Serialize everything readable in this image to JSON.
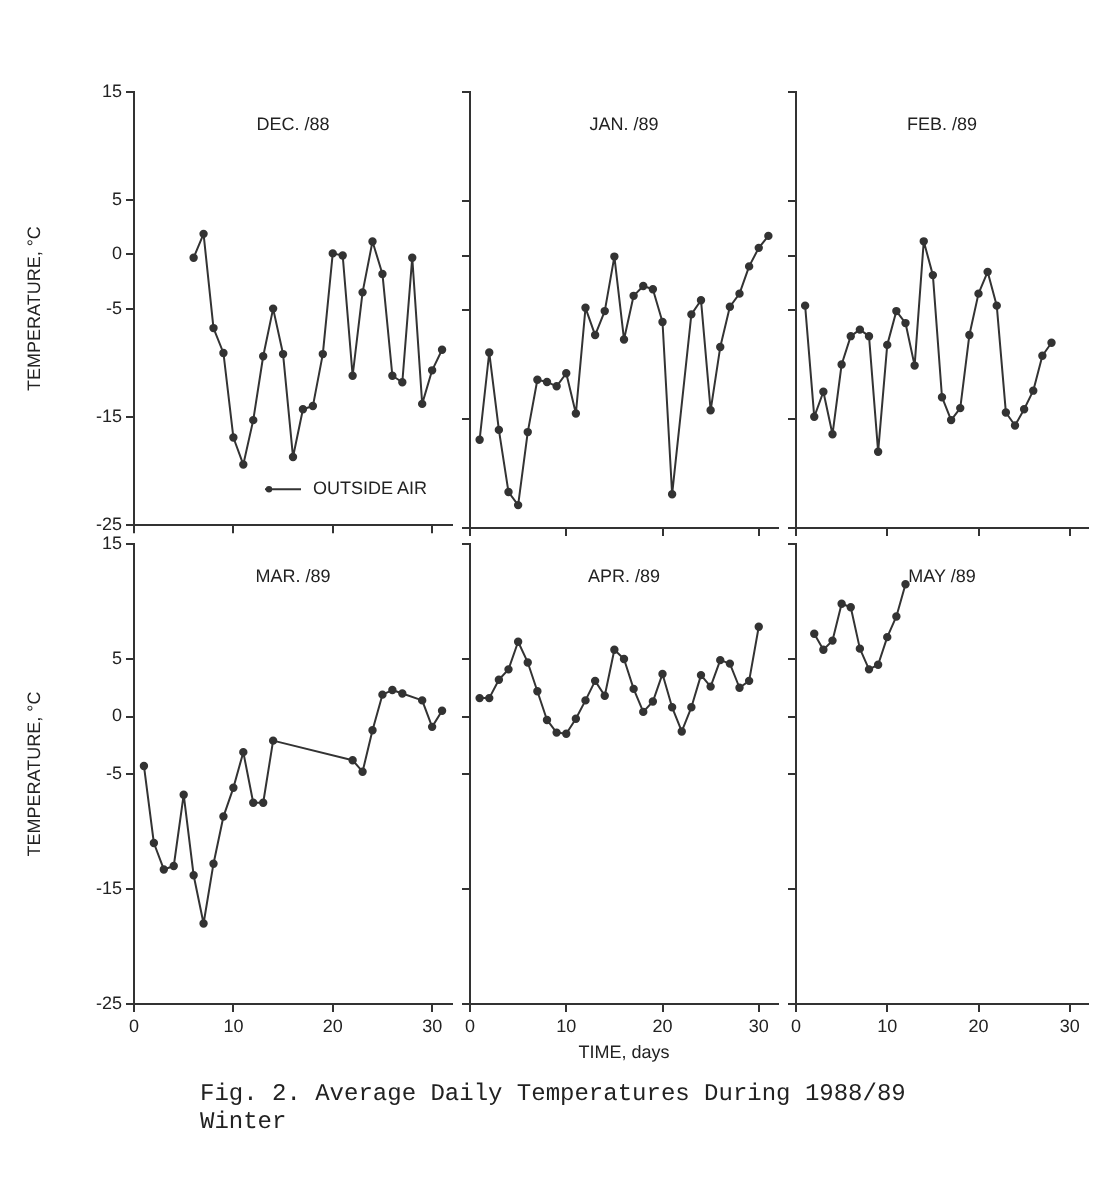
{
  "chart_data": [
    {
      "type": "line",
      "title": "DEC. /88",
      "ylabel": "TEMPERATURE, °C",
      "xlim": [
        0,
        32
      ],
      "xticks": [
        0,
        10,
        20,
        30
      ],
      "ylim": [
        -25,
        15
      ],
      "yticks": [
        -25,
        -15,
        -5,
        0,
        5,
        15
      ],
      "tick_labels": "y",
      "grid": false,
      "legend": "bottom right",
      "marker": "circle",
      "line_style": "solid",
      "series": [
        {
          "name": "OUTSIDE AIR",
          "color": "#333333",
          "x": [
            6,
            7,
            8,
            9,
            10,
            11,
            12,
            13,
            14,
            15,
            16,
            17,
            18,
            19,
            20,
            21,
            22,
            23,
            24,
            25,
            26,
            27,
            28,
            29,
            30,
            31
          ],
          "values": [
            -0.3,
            1.9,
            -6.8,
            -9.1,
            -16.9,
            -19.4,
            -15.3,
            -9.4,
            -5,
            -9.2,
            -18.7,
            -14.3,
            -14,
            -9.2,
            0.1,
            -0.1,
            -11.2,
            -3.5,
            1.2,
            -1.8,
            -11.2,
            -11.8,
            -0.3,
            -13.8,
            -10.7,
            -8.8
          ]
        }
      ]
    },
    {
      "type": "line",
      "title": "JAN. /89",
      "xlim": [
        0,
        32
      ],
      "xticks": [
        0,
        10,
        20,
        30
      ],
      "ylim": [
        -25,
        15
      ],
      "yticks": [
        -25,
        -15,
        -5,
        0,
        5,
        15
      ],
      "tick_labels": false,
      "grid": false,
      "marker": "circle",
      "line_style": "solid",
      "series": [
        {
          "color": "#333333",
          "x": [
            1,
            2,
            3,
            4,
            5,
            6,
            7,
            8,
            9,
            10,
            11,
            12,
            13,
            14,
            15,
            16,
            17,
            18,
            19,
            20,
            21,
            23,
            24,
            25,
            26,
            27,
            28,
            29,
            30,
            31
          ],
          "values": [
            -16.9,
            -8.9,
            -16,
            -21.7,
            -22.9,
            -16.2,
            -11.4,
            -11.6,
            -12,
            -10.8,
            -14.5,
            -4.8,
            -7.3,
            -5.1,
            -0.1,
            -7.7,
            -3.7,
            -2.8,
            -3.1,
            -6.1,
            -21.9,
            -5.4,
            -4.1,
            -14.2,
            -8.4,
            -4.7,
            -3.5,
            -1,
            0.7,
            1.8
          ]
        }
      ]
    },
    {
      "type": "line",
      "title": "FEB. /89",
      "xlim": [
        0,
        32
      ],
      "xticks": [
        0,
        10,
        20,
        30
      ],
      "ylim": [
        -25,
        15
      ],
      "yticks": [
        -25,
        -15,
        -5,
        0,
        5,
        15
      ],
      "tick_labels": false,
      "grid": false,
      "marker": "circle",
      "line_style": "solid",
      "series": [
        {
          "color": "#333333",
          "x": [
            1,
            2,
            3,
            4,
            5,
            6,
            7,
            8,
            9,
            10,
            11,
            12,
            13,
            14,
            15,
            16,
            17,
            18,
            19,
            20,
            21,
            22,
            23,
            24,
            25,
            26,
            27,
            28
          ],
          "values": [
            -4.6,
            -14.8,
            -12.5,
            -16.4,
            -10,
            -7.4,
            -6.8,
            -7.4,
            -18,
            -8.2,
            -5.1,
            -6.2,
            -10.1,
            1.3,
            -1.8,
            -13,
            -15.1,
            -14,
            -7.3,
            -3.5,
            -1.5,
            -4.6,
            -14.4,
            -15.6,
            -14.1,
            -12.4,
            -9.2,
            -8
          ]
        }
      ]
    },
    {
      "type": "line",
      "title": "MAR. /89",
      "ylabel": "TEMPERATURE, °C",
      "xlim": [
        0,
        32
      ],
      "xticks": [
        0,
        10,
        20,
        30
      ],
      "ylim": [
        -25,
        15
      ],
      "yticks": [
        -25,
        -15,
        -5,
        0,
        5,
        15
      ],
      "grid": false,
      "marker": "circle",
      "line_style": "solid",
      "series": [
        {
          "color": "#333333",
          "x": [
            1,
            2,
            3,
            4,
            5,
            6,
            7,
            8,
            9,
            10,
            11,
            12,
            13,
            14,
            22,
            23,
            24,
            25,
            26,
            27,
            29,
            30,
            31
          ],
          "values": [
            -4.3,
            -11,
            -13.3,
            -13,
            -6.8,
            -13.8,
            -18,
            -12.8,
            -8.7,
            -6.2,
            -3.1,
            -7.5,
            -7.5,
            -2.1,
            -3.8,
            -4.8,
            -1.2,
            1.9,
            2.3,
            2,
            1.4,
            -0.9,
            0.5
          ]
        }
      ]
    },
    {
      "type": "line",
      "title": "APR. /89",
      "xlabel": "TIME, days",
      "annotations": [
        "Fig. 2. Average Daily Temperatures During 1988/89 Winter"
      ],
      "xlim": [
        0,
        32
      ],
      "xticks": [
        0,
        10,
        20,
        30
      ],
      "ylim": [
        -25,
        15
      ],
      "yticks": [
        -25,
        -15,
        -5,
        0,
        5,
        15
      ],
      "tick_labels": "x",
      "grid": false,
      "marker": "circle",
      "line_style": "solid",
      "series": [
        {
          "color": "#333333",
          "x": [
            1,
            2,
            3,
            4,
            5,
            6,
            7,
            8,
            9,
            10,
            11,
            12,
            13,
            14,
            15,
            16,
            17,
            18,
            19,
            20,
            21,
            22,
            23,
            24,
            25,
            26,
            27,
            28,
            29,
            30
          ],
          "values": [
            1.6,
            1.6,
            3.2,
            4.1,
            6.5,
            4.7,
            2.2,
            -0.3,
            -1.4,
            -1.5,
            -0.2,
            1.4,
            3.1,
            1.8,
            5.8,
            5,
            2.4,
            0.4,
            1.3,
            3.7,
            0.8,
            -1.3,
            0.8,
            3.6,
            2.6,
            4.9,
            4.6,
            2.5,
            3.1,
            7.8
          ]
        }
      ]
    },
    {
      "type": "line",
      "title": "MAY /89",
      "xlim": [
        0,
        32
      ],
      "xticks": [
        0,
        10,
        20,
        30
      ],
      "ylim": [
        -25,
        15
      ],
      "yticks": [
        -25,
        -15,
        -5,
        0,
        5,
        15
      ],
      "tick_labels": "x",
      "grid": false,
      "marker": "circle",
      "line_style": "solid",
      "series": [
        {
          "color": "#333333",
          "x": [
            2,
            3,
            4,
            5,
            6,
            7,
            8,
            9,
            10,
            11,
            12
          ],
          "values": [
            7.2,
            5.8,
            6.6,
            9.8,
            9.5,
            5.9,
            4.1,
            4.5,
            6.9,
            8.7,
            11.5
          ]
        }
      ]
    }
  ]
}
